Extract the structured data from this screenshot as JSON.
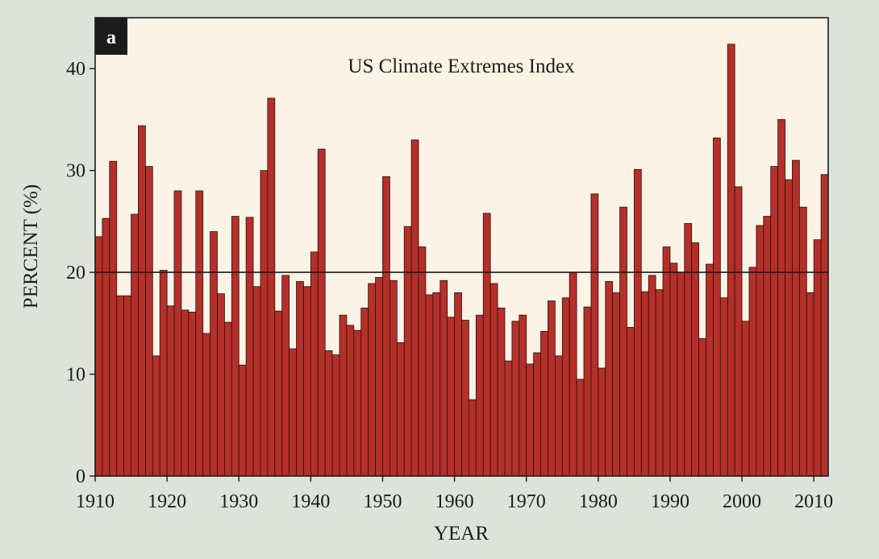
{
  "chart_data": {
    "type": "bar",
    "panel_label": "a",
    "title": "US Climate Extremes Index",
    "xlabel": "YEAR",
    "ylabel": "PERCENT (%)",
    "ylim": [
      0,
      45
    ],
    "xlim": [
      1910,
      2012
    ],
    "x_ticks": [
      1910,
      1920,
      1930,
      1940,
      1950,
      1960,
      1970,
      1980,
      1990,
      2000,
      2010
    ],
    "y_ticks": [
      0,
      10,
      20,
      30,
      40
    ],
    "reference_line": 20,
    "grid": false,
    "legend": "none",
    "bar_color": "#b5302a",
    "years": [
      1910,
      1911,
      1912,
      1913,
      1914,
      1915,
      1916,
      1917,
      1918,
      1919,
      1920,
      1921,
      1922,
      1923,
      1924,
      1925,
      1926,
      1927,
      1928,
      1929,
      1930,
      1931,
      1932,
      1933,
      1934,
      1935,
      1936,
      1937,
      1938,
      1939,
      1940,
      1941,
      1942,
      1943,
      1944,
      1945,
      1946,
      1947,
      1948,
      1949,
      1950,
      1951,
      1952,
      1953,
      1954,
      1955,
      1956,
      1957,
      1958,
      1959,
      1960,
      1961,
      1962,
      1963,
      1964,
      1965,
      1966,
      1967,
      1968,
      1969,
      1970,
      1971,
      1972,
      1973,
      1974,
      1975,
      1976,
      1977,
      1978,
      1979,
      1980,
      1981,
      1982,
      1983,
      1984,
      1985,
      1986,
      1987,
      1988,
      1989,
      1990,
      1991,
      1992,
      1993,
      1994,
      1995,
      1996,
      1997,
      1998,
      1999,
      2000,
      2001,
      2002,
      2003,
      2004,
      2005,
      2006,
      2007,
      2008,
      2009,
      2010,
      2011
    ],
    "values": [
      23.5,
      25.3,
      30.9,
      17.7,
      17.7,
      25.7,
      34.4,
      30.4,
      11.8,
      20.2,
      16.7,
      28.0,
      16.3,
      16.1,
      28.0,
      14.0,
      24.0,
      17.9,
      15.1,
      25.5,
      10.9,
      25.4,
      18.6,
      30.0,
      37.1,
      16.2,
      19.7,
      12.5,
      19.1,
      18.6,
      22.0,
      32.1,
      12.3,
      11.9,
      15.8,
      14.8,
      14.3,
      16.5,
      18.9,
      19.5,
      29.4,
      19.2,
      13.1,
      24.5,
      33.0,
      22.5,
      17.8,
      18.0,
      19.2,
      15.6,
      18.0,
      15.3,
      7.5,
      15.8,
      25.8,
      18.9,
      16.5,
      11.3,
      15.2,
      15.8,
      11.0,
      12.1,
      14.2,
      17.2,
      11.8,
      17.5,
      20.0,
      9.5,
      16.6,
      27.7,
      10.6,
      19.1,
      18.0,
      26.4,
      14.6,
      30.1,
      18.1,
      19.7,
      18.3,
      22.5,
      20.9,
      20.0,
      24.8,
      22.9,
      13.5,
      20.8,
      33.2,
      17.5,
      42.4,
      28.4,
      15.2,
      20.5,
      24.6,
      25.5,
      30.4,
      35.0,
      29.1,
      31.0,
      26.4,
      18.0,
      23.2,
      29.6
    ]
  }
}
